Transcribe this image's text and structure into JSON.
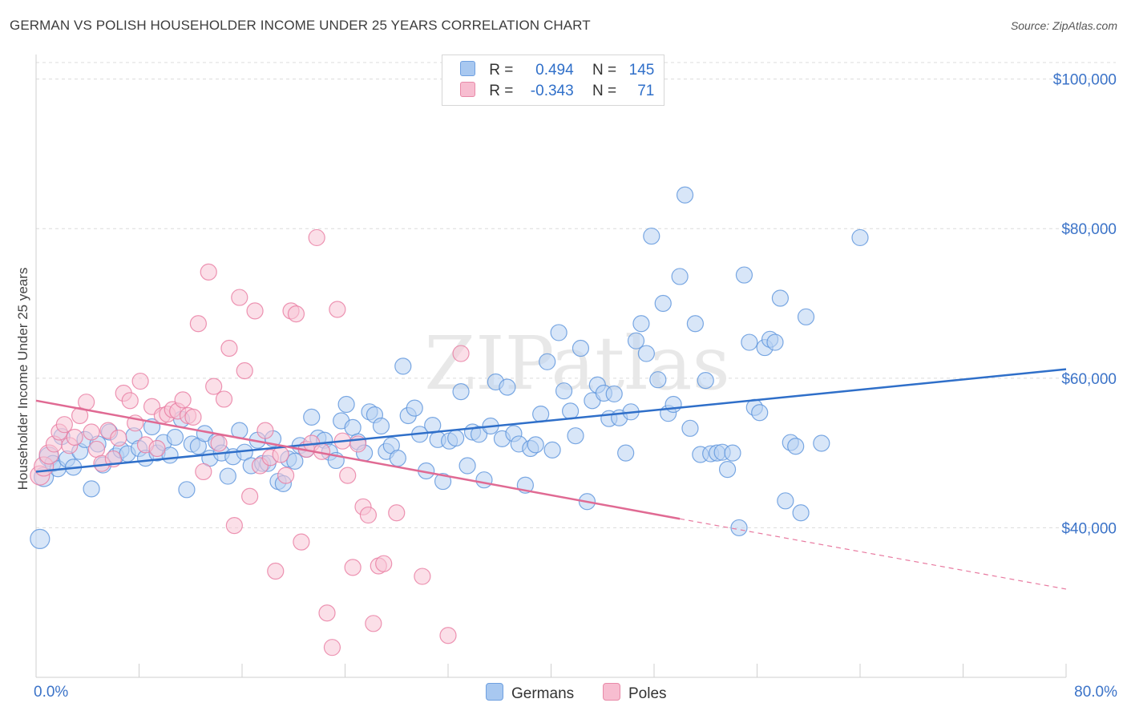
{
  "title": "GERMAN VS POLISH HOUSEHOLDER INCOME UNDER 25 YEARS CORRELATION CHART",
  "source": "Source: ZipAtlas.com",
  "watermark": "ZIPatlas",
  "legend": {
    "rows": [
      {
        "r_label": "R =",
        "r_value": "0.494",
        "n_label": "N =",
        "n_value": "145",
        "color": "#a8c8f0",
        "border": "#6fa0e0"
      },
      {
        "r_label": "R =",
        "r_value": "-0.343",
        "n_label": "N =",
        "n_value": "71",
        "color": "#f7bdd0",
        "border": "#e88aa8"
      }
    ]
  },
  "bottom_legend": [
    "Germans",
    "Poles"
  ],
  "chart_data": {
    "type": "scatter",
    "xlabel": "",
    "ylabel": "Householder Income Under 25 years",
    "xlim": [
      0,
      80
    ],
    "ylim": [
      20000,
      102000
    ],
    "x_tick_labels": [
      "0.0%",
      "80.0%"
    ],
    "y_ticks": [
      40000,
      60000,
      80000,
      100000
    ],
    "y_tick_labels": [
      "$40,000",
      "$60,000",
      "$80,000",
      "$100,000"
    ],
    "grid": "horizontal dashed",
    "legend_position": "top-center",
    "series": [
      {
        "name": "Germans",
        "color": "#5b93dc",
        "fill": "#b8d2f3",
        "trend": {
          "x": [
            0,
            80
          ],
          "y": [
            47500,
            61200
          ]
        },
        "points": [
          [
            0.3,
            38500
          ],
          [
            0.6,
            46800
          ],
          [
            1.0,
            49500
          ],
          [
            1.3,
            48600
          ],
          [
            1.7,
            47900
          ],
          [
            2.0,
            52200
          ],
          [
            2.4,
            49200
          ],
          [
            2.9,
            48100
          ],
          [
            3.4,
            50200
          ],
          [
            3.8,
            51800
          ],
          [
            4.3,
            45200
          ],
          [
            4.8,
            51200
          ],
          [
            5.2,
            48400
          ],
          [
            5.7,
            52800
          ],
          [
            6.2,
            49600
          ],
          [
            6.6,
            50400
          ],
          [
            7.1,
            49900
          ],
          [
            7.6,
            52300
          ],
          [
            8.0,
            50600
          ],
          [
            8.5,
            49300
          ],
          [
            9.0,
            53500
          ],
          [
            9.4,
            50000
          ],
          [
            9.9,
            51400
          ],
          [
            10.4,
            49700
          ],
          [
            10.8,
            52100
          ],
          [
            11.3,
            54500
          ],
          [
            11.7,
            45100
          ],
          [
            12.1,
            51200
          ],
          [
            12.6,
            50900
          ],
          [
            13.1,
            52600
          ],
          [
            13.5,
            49300
          ],
          [
            14.0,
            51500
          ],
          [
            14.4,
            50000
          ],
          [
            14.9,
            46900
          ],
          [
            15.3,
            49500
          ],
          [
            15.8,
            53000
          ],
          [
            16.2,
            50100
          ],
          [
            16.7,
            48300
          ],
          [
            17.2,
            51700
          ],
          [
            17.6,
            48600
          ],
          [
            18.0,
            48600
          ],
          [
            18.4,
            51900
          ],
          [
            18.8,
            46200
          ],
          [
            19.2,
            45900
          ],
          [
            19.6,
            49200
          ],
          [
            20.1,
            48900
          ],
          [
            20.5,
            51000
          ],
          [
            21.0,
            50500
          ],
          [
            21.4,
            54800
          ],
          [
            21.9,
            52000
          ],
          [
            22.4,
            51700
          ],
          [
            22.8,
            50100
          ],
          [
            23.3,
            49000
          ],
          [
            23.7,
            54300
          ],
          [
            24.1,
            56500
          ],
          [
            24.6,
            53400
          ],
          [
            25.0,
            51500
          ],
          [
            25.5,
            50000
          ],
          [
            25.9,
            55500
          ],
          [
            26.3,
            55100
          ],
          [
            26.8,
            53600
          ],
          [
            27.2,
            50200
          ],
          [
            27.6,
            51000
          ],
          [
            28.1,
            49300
          ],
          [
            28.5,
            61600
          ],
          [
            28.9,
            55000
          ],
          [
            29.4,
            56000
          ],
          [
            29.8,
            52500
          ],
          [
            30.3,
            47600
          ],
          [
            30.8,
            53700
          ],
          [
            31.2,
            51800
          ],
          [
            31.6,
            46200
          ],
          [
            32.1,
            51600
          ],
          [
            32.6,
            52000
          ],
          [
            33.0,
            58200
          ],
          [
            33.5,
            48300
          ],
          [
            33.9,
            52800
          ],
          [
            34.4,
            52500
          ],
          [
            34.8,
            46400
          ],
          [
            35.3,
            53600
          ],
          [
            35.7,
            59500
          ],
          [
            36.2,
            51900
          ],
          [
            36.6,
            58800
          ],
          [
            37.1,
            52600
          ],
          [
            37.5,
            51200
          ],
          [
            38.0,
            45700
          ],
          [
            38.4,
            50600
          ],
          [
            38.8,
            51100
          ],
          [
            39.2,
            55200
          ],
          [
            39.7,
            62200
          ],
          [
            40.1,
            50400
          ],
          [
            40.6,
            66100
          ],
          [
            41.0,
            58300
          ],
          [
            41.5,
            55600
          ],
          [
            41.9,
            52300
          ],
          [
            42.3,
            64000
          ],
          [
            42.8,
            43500
          ],
          [
            43.2,
            57000
          ],
          [
            43.6,
            59100
          ],
          [
            44.1,
            58000
          ],
          [
            44.5,
            54600
          ],
          [
            44.9,
            57900
          ],
          [
            45.3,
            54700
          ],
          [
            45.8,
            50000
          ],
          [
            46.2,
            55500
          ],
          [
            46.6,
            65000
          ],
          [
            47.0,
            67300
          ],
          [
            47.4,
            63300
          ],
          [
            47.8,
            79000
          ],
          [
            48.3,
            59800
          ],
          [
            48.7,
            70000
          ],
          [
            49.1,
            55300
          ],
          [
            49.5,
            56500
          ],
          [
            50.0,
            73600
          ],
          [
            50.4,
            84500
          ],
          [
            50.8,
            53300
          ],
          [
            51.2,
            67300
          ],
          [
            51.6,
            49800
          ],
          [
            52.0,
            59700
          ],
          [
            52.4,
            49900
          ],
          [
            52.9,
            50000
          ],
          [
            53.3,
            50100
          ],
          [
            53.7,
            47800
          ],
          [
            54.1,
            50000
          ],
          [
            54.6,
            40000
          ],
          [
            55.0,
            73800
          ],
          [
            55.4,
            64800
          ],
          [
            55.8,
            56100
          ],
          [
            56.2,
            55400
          ],
          [
            56.6,
            64100
          ],
          [
            57.0,
            65200
          ],
          [
            57.4,
            64800
          ],
          [
            57.8,
            70700
          ],
          [
            58.2,
            43600
          ],
          [
            58.6,
            51400
          ],
          [
            59.0,
            50900
          ],
          [
            59.4,
            42000
          ],
          [
            59.8,
            68200
          ],
          [
            61.0,
            51300
          ],
          [
            64.0,
            78800
          ]
        ]
      },
      {
        "name": "Poles",
        "color": "#e87aa0",
        "fill": "#f7c4d5",
        "trend": {
          "x": [
            0,
            50
          ],
          "y": [
            57000,
            41200
          ]
        },
        "trend_dashed": {
          "x": [
            50,
            80
          ],
          "y": [
            41200,
            31800
          ]
        },
        "points": [
          [
            0.3,
            47000
          ],
          [
            0.6,
            48200
          ],
          [
            1.0,
            49800
          ],
          [
            1.4,
            51200
          ],
          [
            1.8,
            52800
          ],
          [
            2.2,
            53800
          ],
          [
            2.6,
            51000
          ],
          [
            3.0,
            52100
          ],
          [
            3.4,
            55000
          ],
          [
            3.9,
            56800
          ],
          [
            4.3,
            52800
          ],
          [
            4.7,
            50500
          ],
          [
            5.1,
            48600
          ],
          [
            5.6,
            53000
          ],
          [
            6.0,
            49200
          ],
          [
            6.4,
            52000
          ],
          [
            6.8,
            58000
          ],
          [
            7.3,
            57000
          ],
          [
            7.7,
            54000
          ],
          [
            8.1,
            59600
          ],
          [
            8.5,
            51100
          ],
          [
            9.0,
            56200
          ],
          [
            9.4,
            50600
          ],
          [
            9.8,
            55000
          ],
          [
            10.2,
            55200
          ],
          [
            10.6,
            55800
          ],
          [
            11.0,
            55600
          ],
          [
            11.4,
            57100
          ],
          [
            11.8,
            55000
          ],
          [
            12.2,
            54800
          ],
          [
            12.6,
            67300
          ],
          [
            13.0,
            47500
          ],
          [
            13.4,
            74200
          ],
          [
            13.8,
            58900
          ],
          [
            14.2,
            51300
          ],
          [
            14.6,
            57200
          ],
          [
            15.0,
            64000
          ],
          [
            15.4,
            40300
          ],
          [
            15.8,
            70800
          ],
          [
            16.2,
            61000
          ],
          [
            16.6,
            44200
          ],
          [
            17.0,
            69000
          ],
          [
            17.4,
            48300
          ],
          [
            17.8,
            53000
          ],
          [
            18.2,
            49400
          ],
          [
            18.6,
            34200
          ],
          [
            19.0,
            49800
          ],
          [
            19.4,
            47000
          ],
          [
            19.8,
            69000
          ],
          [
            20.2,
            68600
          ],
          [
            20.6,
            38100
          ],
          [
            21.0,
            50500
          ],
          [
            21.4,
            51300
          ],
          [
            21.8,
            78800
          ],
          [
            22.2,
            50200
          ],
          [
            22.6,
            28600
          ],
          [
            23.0,
            24000
          ],
          [
            23.4,
            69200
          ],
          [
            23.8,
            51600
          ],
          [
            24.2,
            47000
          ],
          [
            24.6,
            34700
          ],
          [
            25.0,
            51200
          ],
          [
            25.4,
            42800
          ],
          [
            25.8,
            41700
          ],
          [
            26.2,
            27200
          ],
          [
            26.6,
            34900
          ],
          [
            27.0,
            35200
          ],
          [
            28.0,
            42000
          ],
          [
            30.0,
            33500
          ],
          [
            32.0,
            25600
          ],
          [
            33.0,
            63300
          ]
        ]
      }
    ]
  }
}
